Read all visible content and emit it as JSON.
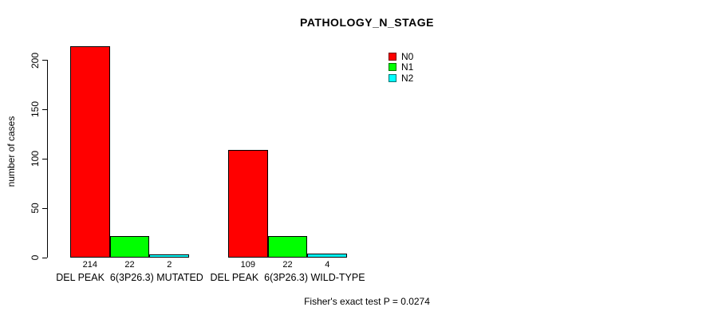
{
  "chart_data": {
    "type": "bar",
    "title": "PATHOLOGY_N_STAGE",
    "xlabel": "",
    "ylabel": "number of cases",
    "ylim": [
      0,
      200
    ],
    "yticks": [
      0,
      50,
      100,
      150,
      200
    ],
    "grid": false,
    "legend_position": "top-right",
    "bar_outline_color": "#000000",
    "background_color": "#ffffff",
    "categories": [
      "DEL PEAK  6(3P26.3) MUTATED",
      "DEL PEAK  6(3P26.3) WILD-TYPE"
    ],
    "series": [
      {
        "name": "N0",
        "color": "#ff0000",
        "values": [
          214,
          109
        ]
      },
      {
        "name": "N1",
        "color": "#00ff00",
        "values": [
          22,
          22
        ]
      },
      {
        "name": "N2",
        "color": "#00ffff",
        "values": [
          2,
          4
        ]
      }
    ],
    "bar_value_labels": [
      [
        "214",
        "22",
        "2"
      ],
      [
        "109",
        "22",
        "4"
      ]
    ],
    "annotation": "Fisher's exact test P = 0.0274"
  }
}
